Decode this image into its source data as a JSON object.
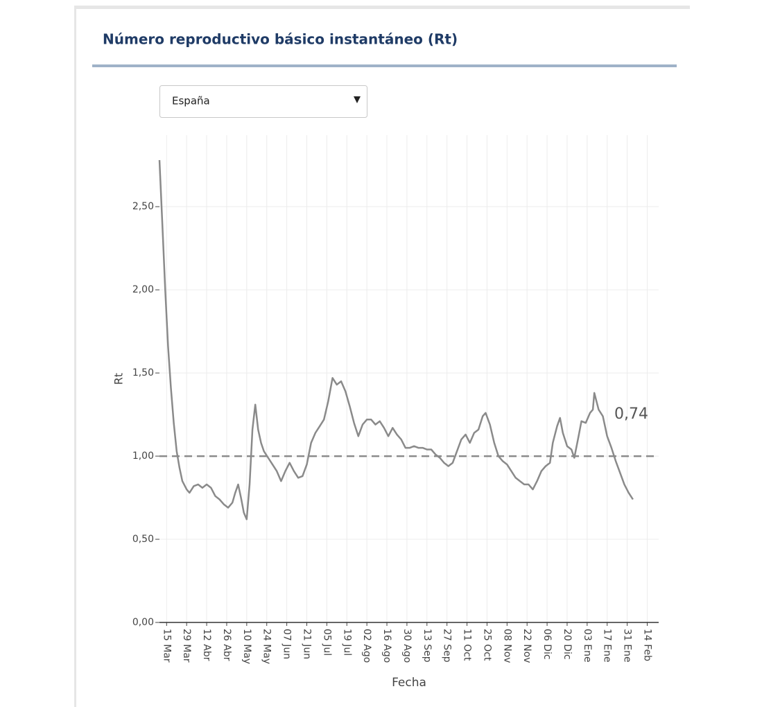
{
  "selector": {
    "value": "España"
  },
  "chart_data": {
    "type": "line",
    "title": "Número reproductivo básico instantáneo (Rt)",
    "x_label": "Fecha",
    "y_label": "Rt",
    "color": "#8a8a8a",
    "grid": true,
    "reference_line": 1,
    "x": [
      "10 Mar",
      "12 Mar",
      "14 Mar",
      "16 Mar",
      "18 Mar",
      "20 Mar",
      "22 Mar",
      "24 Mar",
      "26 Mar",
      "29 Mar",
      "31 Mar",
      "03 Abr",
      "06 Abr",
      "09 Abr",
      "12 Abr",
      "15 Abr",
      "18 Abr",
      "21 Abr",
      "24 Abr",
      "27 Abr",
      "30 Abr",
      "02 May",
      "04 May",
      "06 May",
      "08 May",
      "10 May",
      "12 May",
      "14 May",
      "16 May",
      "18 May",
      "20 May",
      "22 May",
      "25 May",
      "28 May",
      "31 May",
      "03 Jun",
      "06 Jun",
      "09 Jun",
      "12 Jun",
      "15 Jun",
      "18 Jun",
      "21 Jun",
      "24 Jun",
      "27 Jun",
      "30 Jun",
      "03 Jul",
      "06 Jul",
      "09 Jul",
      "12 Jul",
      "15 Jul",
      "18 Jul",
      "21 Jul",
      "24 Jul",
      "27 Jul",
      "30 Jul",
      "02 Ago",
      "05 Ago",
      "08 Ago",
      "11 Ago",
      "14 Ago",
      "17 Ago",
      "20 Ago",
      "23 Ago",
      "26 Ago",
      "29 Ago",
      "01 Sep",
      "04 Sep",
      "07 Sep",
      "10 Sep",
      "13 Sep",
      "16 Sep",
      "19 Sep",
      "22 Sep",
      "25 Sep",
      "28 Sep",
      "01 Oct",
      "04 Oct",
      "07 Oct",
      "10 Oct",
      "13 Oct",
      "16 Oct",
      "19 Oct",
      "22 Oct",
      "24 Oct",
      "27 Oct",
      "30 Oct",
      "02 Nov",
      "05 Nov",
      "08 Nov",
      "11 Nov",
      "14 Nov",
      "17 Nov",
      "20 Nov",
      "23 Nov",
      "26 Nov",
      "29 Nov",
      "02 Dic",
      "05 Dic",
      "08 Dic",
      "10 Dic",
      "13 Dic",
      "15 Dic",
      "17 Dic",
      "20 Dic",
      "23 Dic",
      "25 Dic",
      "28 Dic",
      "30 Dic",
      "02 Ene",
      "05 Ene",
      "07 Ene",
      "08 Ene",
      "11 Ene",
      "14 Ene",
      "17 Ene",
      "20 Ene",
      "23 Ene",
      "26 Ene",
      "29 Ene",
      "01 Feb",
      "04 Feb"
    ],
    "values": [
      2.78,
      2.4,
      2.0,
      1.66,
      1.41,
      1.2,
      1.03,
      0.93,
      0.85,
      0.8,
      0.78,
      0.82,
      0.83,
      0.81,
      0.83,
      0.81,
      0.76,
      0.74,
      0.71,
      0.69,
      0.72,
      0.78,
      0.83,
      0.75,
      0.66,
      0.62,
      0.83,
      1.16,
      1.31,
      1.16,
      1.08,
      1.03,
      0.99,
      0.95,
      0.91,
      0.85,
      0.91,
      0.96,
      0.91,
      0.87,
      0.88,
      0.95,
      1.08,
      1.14,
      1.18,
      1.22,
      1.33,
      1.47,
      1.43,
      1.45,
      1.39,
      1.3,
      1.2,
      1.12,
      1.19,
      1.22,
      1.22,
      1.19,
      1.21,
      1.17,
      1.12,
      1.17,
      1.13,
      1.1,
      1.05,
      1.05,
      1.06,
      1.05,
      1.05,
      1.04,
      1.04,
      1.01,
      0.99,
      0.96,
      0.94,
      0.96,
      1.03,
      1.1,
      1.13,
      1.08,
      1.14,
      1.16,
      1.24,
      1.26,
      1.19,
      1.08,
      1.0,
      0.97,
      0.95,
      0.91,
      0.87,
      0.85,
      0.83,
      0.83,
      0.8,
      0.85,
      0.91,
      0.94,
      0.96,
      1.08,
      1.18,
      1.23,
      1.14,
      1.06,
      1.04,
      0.99,
      1.12,
      1.21,
      1.2,
      1.26,
      1.28,
      1.38,
      1.28,
      1.24,
      1.12,
      1.05,
      0.97,
      0.9,
      0.83,
      0.78,
      0.74
    ],
    "annotation": {
      "text": "0,74",
      "value": 0.74
    },
    "xlim": [
      "10 Mar",
      "22 Feb"
    ],
    "xticks": [
      "15 Mar",
      "29 Mar",
      "12 Abr",
      "26 Abr",
      "10 May",
      "24 May",
      "07 Jun",
      "21 Jun",
      "05 Jul",
      "19 Jul",
      "02 Ago",
      "16 Ago",
      "30 Ago",
      "13 Sep",
      "27 Sep",
      "11 Oct",
      "25 Oct",
      "08 Nov",
      "22 Nov",
      "06 Dic",
      "20 Dic",
      "03 Ene",
      "17 Ene",
      "31 Ene",
      "14 Feb"
    ],
    "ylim": [
      0,
      2.93
    ],
    "yticks": [
      {
        "value": 0,
        "label": "0,00"
      },
      {
        "value": 0.5,
        "label": "0,50"
      },
      {
        "value": 1,
        "label": "1,00"
      },
      {
        "value": 1.5,
        "label": "1,50"
      },
      {
        "value": 2,
        "label": "2,00"
      },
      {
        "value": 2.5,
        "label": "2,50"
      }
    ]
  }
}
